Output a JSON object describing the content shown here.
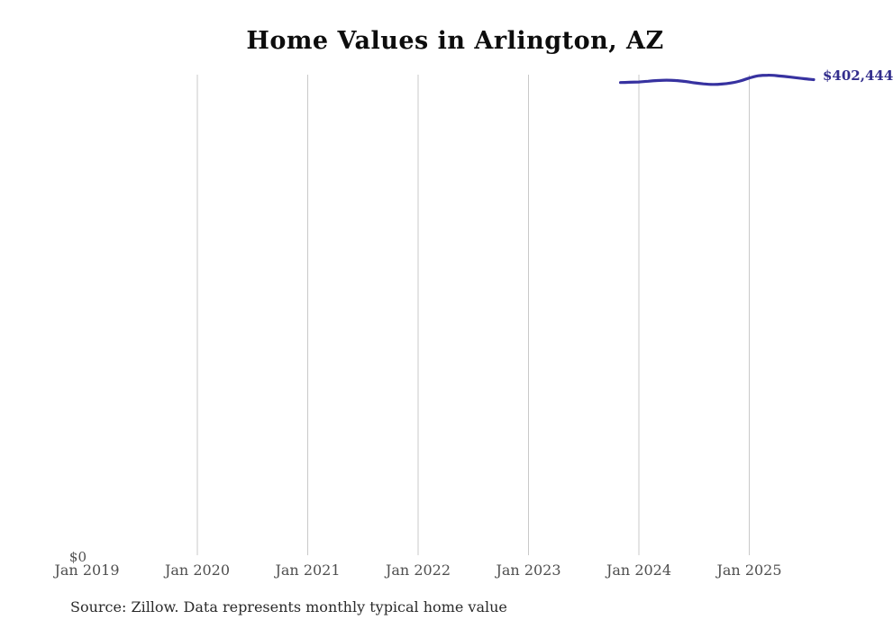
{
  "title": "Home Values in Arlington, AZ",
  "source_note": "Source: Zillow. Data represents monthly typical home value",
  "y_axis": {
    "zero_label": "$0"
  },
  "x_axis": {
    "ticks": [
      {
        "label": "Jan 2019",
        "month": "2019-01",
        "gridline": false
      },
      {
        "label": "Jan 2020",
        "month": "2020-01",
        "gridline": true
      },
      {
        "label": "Jan 2021",
        "month": "2021-01",
        "gridline": true
      },
      {
        "label": "Jan 2022",
        "month": "2022-01",
        "gridline": true
      },
      {
        "label": "Jan 2023",
        "month": "2023-01",
        "gridline": true
      },
      {
        "label": "Jan 2024",
        "month": "2024-01",
        "gridline": true
      },
      {
        "label": "Jan 2025",
        "month": "2025-01",
        "gridline": true
      }
    ]
  },
  "last_value_label": "$402,444",
  "colors": {
    "line": "#3732a0",
    "gridline": "#c9c9c9",
    "axis_label": "#4f4f4f",
    "value_label": "#322d8c",
    "title": "#0d0d0d",
    "source": "#2b2b2b",
    "background": "#ffffff"
  },
  "chart_data": {
    "type": "line",
    "title": "Home Values in Arlington, AZ",
    "xlabel": "",
    "ylabel": "",
    "ylim": [
      0,
      410000
    ],
    "grid": "vertical-only",
    "legend_position": "none",
    "x_tick_labels": [
      "Jan 2019",
      "Jan 2020",
      "Jan 2021",
      "Jan 2022",
      "Jan 2023",
      "Jan 2024",
      "Jan 2025"
    ],
    "annotation": "$402,444",
    "series": [
      {
        "name": "Monthly typical home value",
        "months": [
          "2023-11",
          "2023-12",
          "2024-01",
          "2024-02",
          "2024-03",
          "2024-04",
          "2024-05",
          "2024-06",
          "2024-07",
          "2024-08",
          "2024-09",
          "2024-10",
          "2024-11",
          "2024-12",
          "2025-01",
          "2025-02",
          "2025-03",
          "2025-04",
          "2025-05",
          "2025-06",
          "2025-07",
          "2025-08"
        ],
        "values": [
          400000,
          400200,
          400500,
          401100,
          401700,
          402000,
          401700,
          400900,
          399800,
          398900,
          398400,
          398700,
          399600,
          401300,
          403800,
          405700,
          406200,
          405800,
          405000,
          404100,
          403200,
          402444
        ]
      }
    ]
  }
}
